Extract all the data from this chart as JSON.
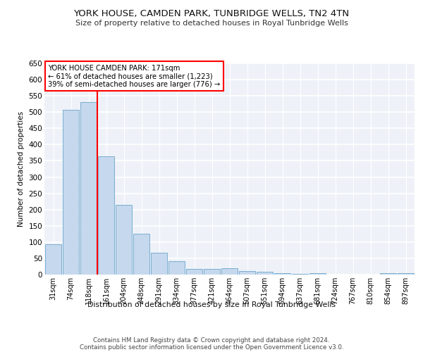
{
  "title": "YORK HOUSE, CAMDEN PARK, TUNBRIDGE WELLS, TN2 4TN",
  "subtitle": "Size of property relative to detached houses in Royal Tunbridge Wells",
  "xlabel": "Distribution of detached houses by size in Royal Tunbridge Wells",
  "ylabel": "Number of detached properties",
  "footnote1": "Contains HM Land Registry data © Crown copyright and database right 2024.",
  "footnote2": "Contains public sector information licensed under the Open Government Licence v3.0.",
  "annotation_line1": "YORK HOUSE CAMDEN PARK: 171sqm",
  "annotation_line2": "← 61% of detached houses are smaller (1,223)",
  "annotation_line3": "39% of semi-detached houses are larger (776) →",
  "bar_labels": [
    "31sqm",
    "74sqm",
    "118sqm",
    "161sqm",
    "204sqm",
    "248sqm",
    "291sqm",
    "334sqm",
    "377sqm",
    "421sqm",
    "464sqm",
    "507sqm",
    "551sqm",
    "594sqm",
    "637sqm",
    "681sqm",
    "724sqm",
    "767sqm",
    "810sqm",
    "854sqm",
    "897sqm"
  ],
  "bar_values": [
    93,
    507,
    530,
    363,
    215,
    125,
    68,
    42,
    17,
    17,
    19,
    11,
    9,
    5,
    2,
    5,
    1,
    1,
    1,
    4,
    4
  ],
  "bar_color": "#c5d8ed",
  "bar_edge_color": "#7aaed0",
  "vline_color": "red",
  "ylim": [
    0,
    650
  ],
  "yticks": [
    0,
    50,
    100,
    150,
    200,
    250,
    300,
    350,
    400,
    450,
    500,
    550,
    600,
    650
  ],
  "bg_color": "#eef2f8",
  "grid_color": "#ffffff",
  "annotation_box_color": "white",
  "annotation_box_edge": "red"
}
